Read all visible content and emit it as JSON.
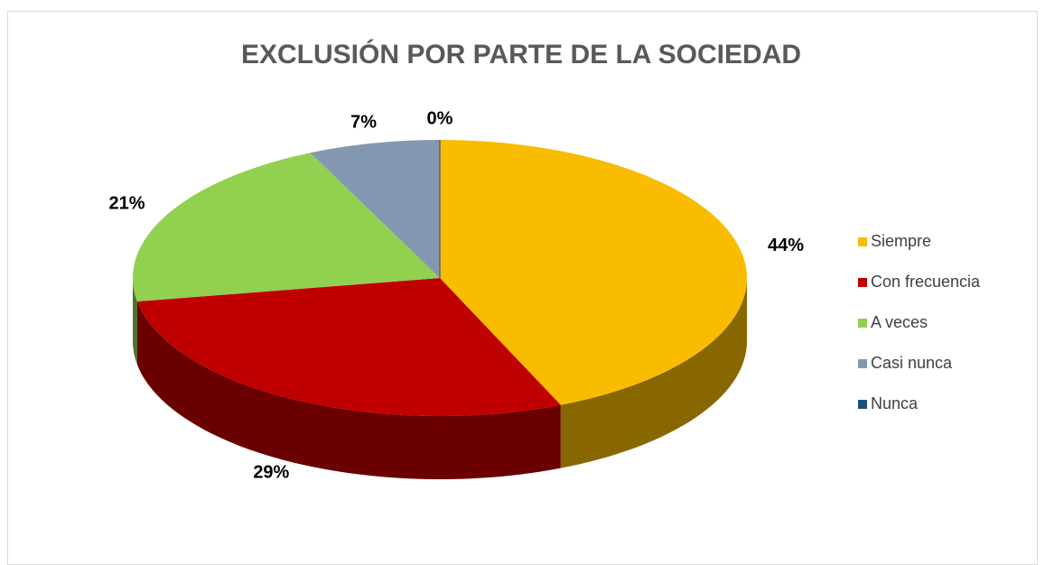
{
  "chart_data": {
    "type": "pie3d",
    "title": "EXCLUSIÓN POR PARTE DE LA SOCIEDAD",
    "categories": [
      "Siempre",
      "Con frecuencia",
      "A veces",
      "Casi nunca",
      "Nunca"
    ],
    "values": [
      44,
      29,
      21,
      7,
      0
    ],
    "value_labels": [
      "44%",
      "29%",
      "21%",
      "7%",
      "0%"
    ],
    "colors": [
      "#f9bc00",
      "#c00000",
      "#92d050",
      "#8497b0",
      "#1f4e79"
    ],
    "legend": "right"
  }
}
